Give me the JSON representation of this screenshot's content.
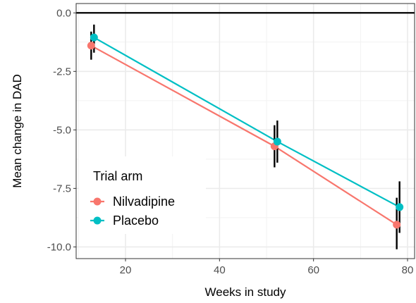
{
  "chart_data": {
    "type": "line",
    "xlabel": "Weeks in study",
    "ylabel": "Mean change in DAD",
    "xlim": [
      9.5,
      81.5
    ],
    "ylim": [
      -10.5,
      0.4
    ],
    "xticks": [
      20,
      40,
      60,
      80
    ],
    "xtick_labels": [
      "20",
      "40",
      "60",
      "80"
    ],
    "yticks": [
      0,
      -2.5,
      -5,
      -7.5,
      -10
    ],
    "ytick_labels": [
      "0.0",
      "-2.5",
      "-5.0",
      "-7.5",
      "-10.0"
    ],
    "grid": true,
    "reference_line_y": 0,
    "legend": {
      "title": "Trial arm",
      "placement": "inside-left"
    },
    "series": [
      {
        "name": "Nilvadipine",
        "color": "#F8766D",
        "x": [
          12.7,
          51.7,
          77.7
        ],
        "y": [
          -1.4,
          -5.7,
          -9.05
        ],
        "error_low": [
          -2.0,
          -6.6,
          -10.1
        ],
        "error_high": [
          -0.8,
          -4.8,
          -7.9
        ]
      },
      {
        "name": "Placebo",
        "color": "#00BFC4",
        "x": [
          13.3,
          52.3,
          78.3
        ],
        "y": [
          -1.05,
          -5.5,
          -8.3
        ],
        "error_low": [
          -1.7,
          -6.4,
          -9.4
        ],
        "error_high": [
          -0.5,
          -4.6,
          -7.2
        ]
      }
    ]
  }
}
